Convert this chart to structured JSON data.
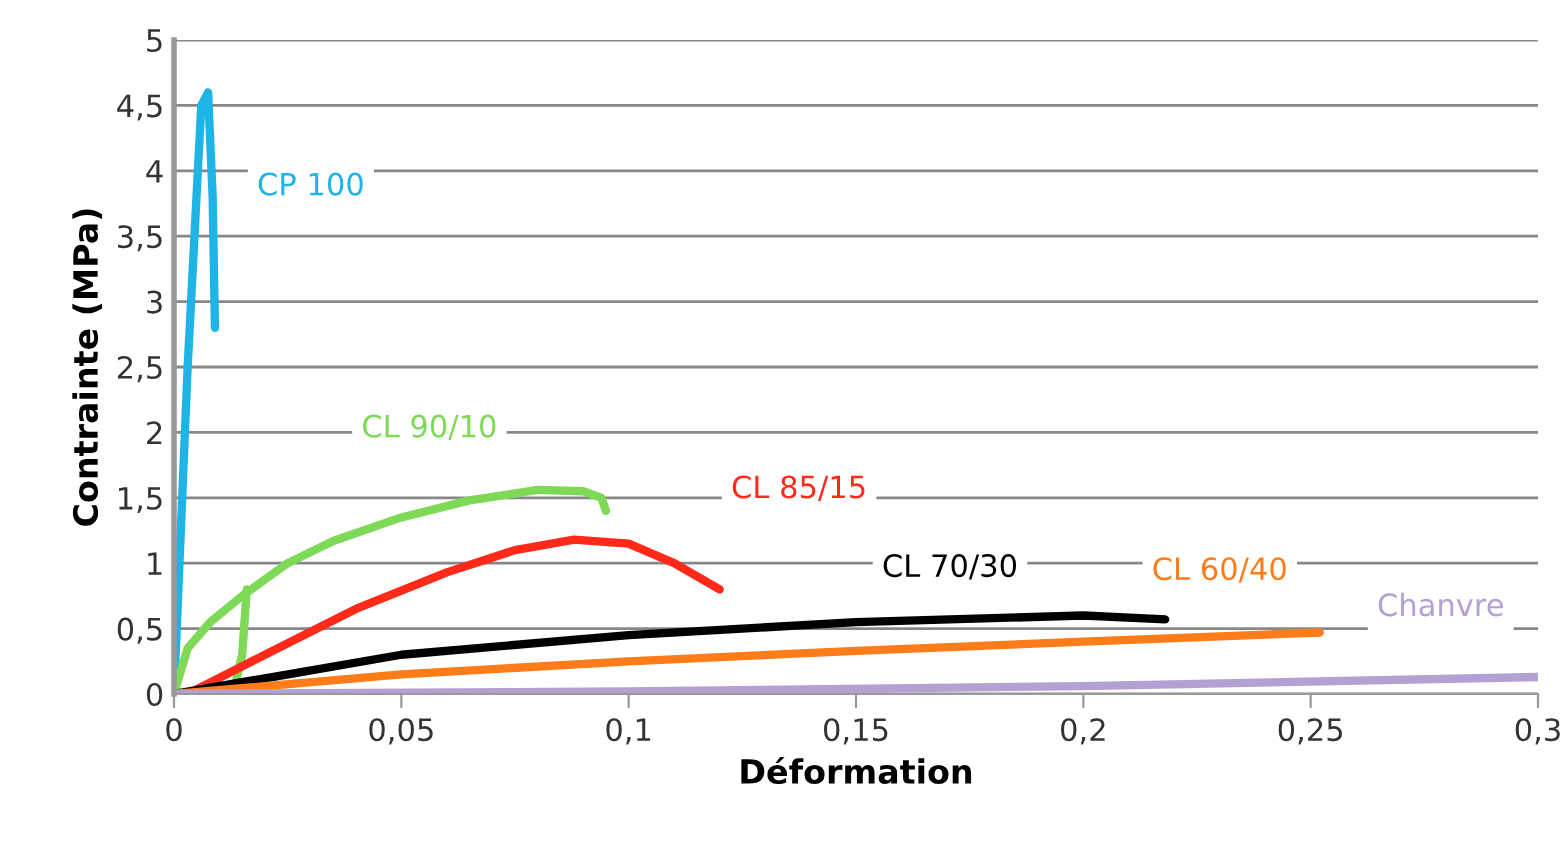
{
  "chart_data": {
    "type": "line",
    "xlabel": "Déformation",
    "ylabel": "Contrainte (MPa)",
    "xlim": [
      0,
      0.3
    ],
    "ylim": [
      0,
      5
    ],
    "xticks": [
      0,
      {
        "value": 0.05,
        "label": "0,05"
      },
      {
        "value": 0.1,
        "label": "0,1"
      },
      {
        "value": 0.15,
        "label": "0,15"
      },
      {
        "value": 0.2,
        "label": "0,2"
      },
      {
        "value": 0.25,
        "label": "0,25"
      },
      {
        "value": 0.3,
        "label": "0,3"
      }
    ],
    "yticks": [
      0,
      {
        "value": 0.5,
        "label": "0,5"
      },
      1,
      {
        "value": 1.5,
        "label": "1,5"
      },
      2,
      {
        "value": 2.5,
        "label": "2,5"
      },
      3,
      {
        "value": 3.5,
        "label": "3,5"
      },
      4,
      {
        "value": 4.5,
        "label": "4,5"
      },
      5
    ],
    "grid": "y",
    "legend": false,
    "marker": "none",
    "line_style": "solid",
    "series": [
      {
        "name": "CP 100",
        "color": "#1fb4e6",
        "x": [
          0,
          0.003,
          0.006,
          0.0075,
          0.0085,
          0.009
        ],
        "values": [
          0,
          2.5,
          4.5,
          4.6,
          3.8,
          2.8
        ]
      },
      {
        "name": "CL 90/10",
        "color": "#7ed957",
        "x": [
          0,
          0.003,
          0.008,
          0.015,
          0.025,
          0.035,
          0.05,
          0.065,
          0.08,
          0.09,
          0.094,
          0.095,
          null,
          0.013,
          0.015,
          0.016
        ],
        "values": [
          0,
          0.35,
          0.55,
          0.75,
          1.0,
          1.17,
          1.35,
          1.48,
          1.56,
          1.55,
          1.5,
          1.4,
          null,
          0,
          0.3,
          0.8
        ]
      },
      {
        "name": "CL 85/15",
        "color": "#ff2a1a",
        "x": [
          0.003,
          0.02,
          0.04,
          0.06,
          0.075,
          0.088,
          0.1,
          0.11,
          0.12
        ],
        "values": [
          0,
          0.3,
          0.65,
          0.93,
          1.1,
          1.18,
          1.15,
          1.0,
          0.8
        ]
      },
      {
        "name": "CL 70/30",
        "color": "#000000",
        "x": [
          0,
          0.02,
          0.05,
          0.1,
          0.15,
          0.2,
          0.218
        ],
        "values": [
          0,
          0.12,
          0.3,
          0.45,
          0.55,
          0.6,
          0.57
        ]
      },
      {
        "name": "CL 60/40",
        "color": "#ff7c1a",
        "x": [
          0,
          0.05,
          0.1,
          0.15,
          0.2,
          0.252
        ],
        "values": [
          0,
          0.15,
          0.25,
          0.33,
          0.4,
          0.47
        ]
      },
      {
        "name": "Chanvre",
        "color": "#b4a0d2",
        "x": [
          0,
          0.1,
          0.2,
          0.3
        ],
        "values": [
          0,
          0.02,
          0.06,
          0.13
        ]
      }
    ]
  }
}
